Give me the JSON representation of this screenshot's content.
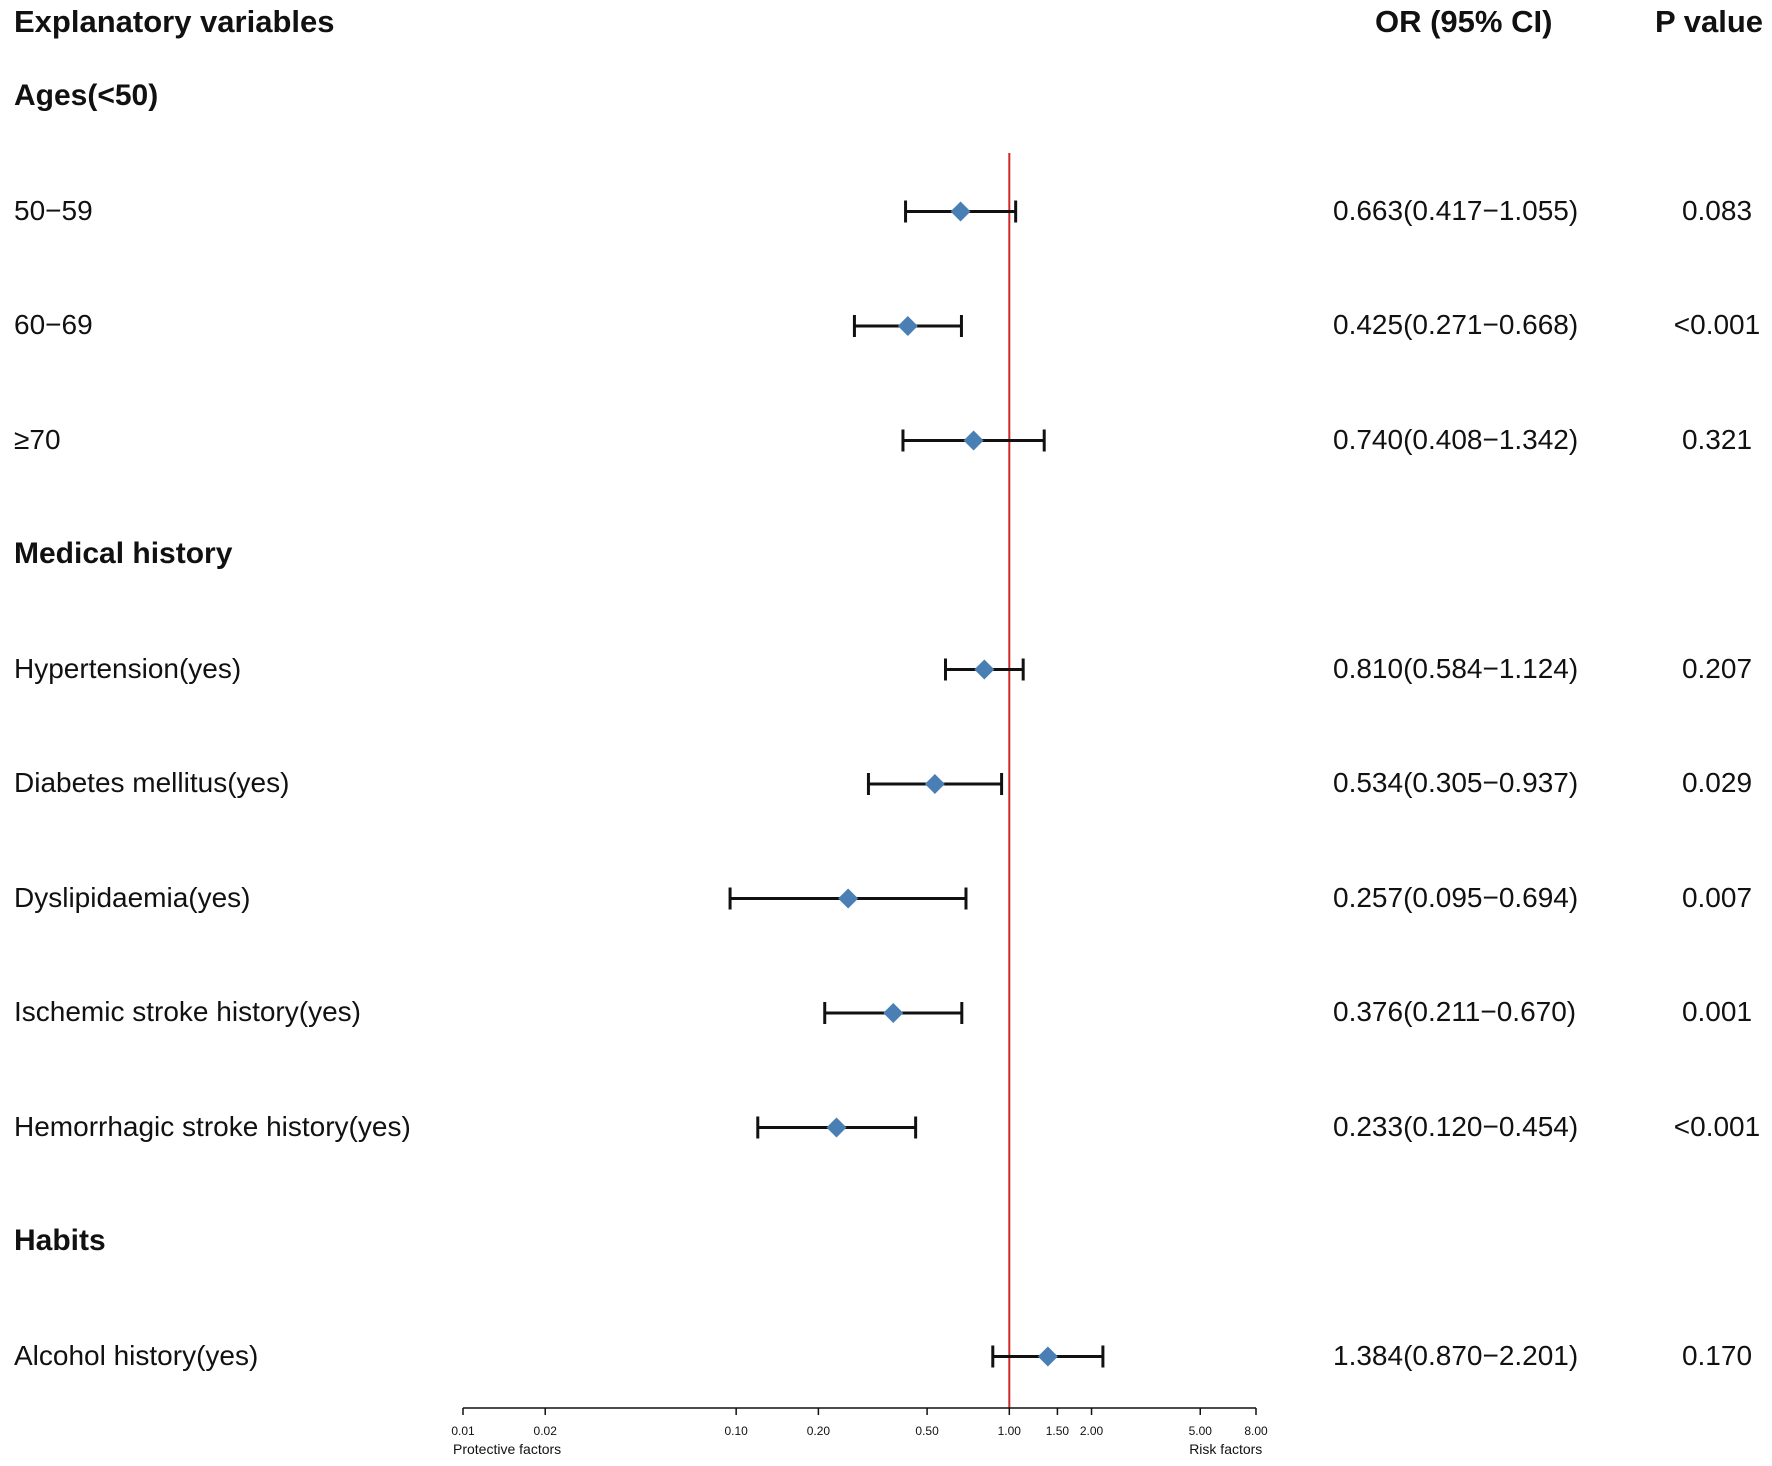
{
  "headers": {
    "variables": "Explanatory variables",
    "or": "OR (95% CI)",
    "p": "P value"
  },
  "groups": [
    {
      "label": "Ages(<50)",
      "row": 0
    },
    {
      "label": "Medical history",
      "row": 4
    },
    {
      "label": "Habits",
      "row": 10
    }
  ],
  "colors": {
    "reference_line": "#cc2a2a",
    "point": "#4a7fb5",
    "whisker": "#111111"
  },
  "chart_data": {
    "type": "forest",
    "scale": "log",
    "reference_value": 1.0,
    "xlim": [
      0.01,
      8.0
    ],
    "ticks": [
      {
        "value": 0.01,
        "label": "0.01"
      },
      {
        "value": 0.02,
        "label": "0.02"
      },
      {
        "value": 0.1,
        "label": "0.10"
      },
      {
        "value": 0.2,
        "label": "0.20"
      },
      {
        "value": 0.5,
        "label": "0.50"
      },
      {
        "value": 1.0,
        "label": "1.00"
      },
      {
        "value": 1.5,
        "label": "1.50"
      },
      {
        "value": 2.0,
        "label": "2.00"
      },
      {
        "value": 5.0,
        "label": "5.00"
      },
      {
        "value": 8.0,
        "label": "8.00"
      }
    ],
    "left_label": "Protective factors",
    "right_label": "Risk factors",
    "rows": [
      {
        "label": "50−59",
        "row": 1,
        "or": 0.663,
        "lower": 0.417,
        "upper": 1.055,
        "or_text": "0.663(0.417−1.055)",
        "p": "0.083"
      },
      {
        "label": "60−69",
        "row": 2,
        "or": 0.425,
        "lower": 0.271,
        "upper": 0.668,
        "or_text": "0.425(0.271−0.668)",
        "p": "<0.001"
      },
      {
        "label": "≥70",
        "row": 3,
        "or": 0.74,
        "lower": 0.408,
        "upper": 1.342,
        "or_text": "0.740(0.408−1.342)",
        "p": "0.321"
      },
      {
        "label": "Hypertension(yes)",
        "row": 5,
        "or": 0.81,
        "lower": 0.584,
        "upper": 1.124,
        "or_text": "0.810(0.584−1.124)",
        "p": "0.207"
      },
      {
        "label": "Diabetes mellitus(yes)",
        "row": 6,
        "or": 0.534,
        "lower": 0.305,
        "upper": 0.937,
        "or_text": "0.534(0.305−0.937)",
        "p": "0.029"
      },
      {
        "label": "Dyslipidaemia(yes)",
        "row": 7,
        "or": 0.257,
        "lower": 0.095,
        "upper": 0.694,
        "or_text": "0.257(0.095−0.694)",
        "p": "0.007"
      },
      {
        "label": "Ischemic stroke history(yes)",
        "row": 8,
        "or": 0.376,
        "lower": 0.211,
        "upper": 0.67,
        "or_text": "0.376(0.211−0.670)",
        "p": "0.001"
      },
      {
        "label": "Hemorrhagic stroke history(yes)",
        "row": 9,
        "or": 0.233,
        "lower": 0.12,
        "upper": 0.454,
        "or_text": "0.233(0.120−0.454)",
        "p": "<0.001"
      },
      {
        "label": "Alcohol history(yes)",
        "row": 11,
        "or": 1.384,
        "lower": 0.87,
        "upper": 2.201,
        "or_text": "1.384(0.870−2.201)",
        "p": "0.170"
      }
    ]
  }
}
